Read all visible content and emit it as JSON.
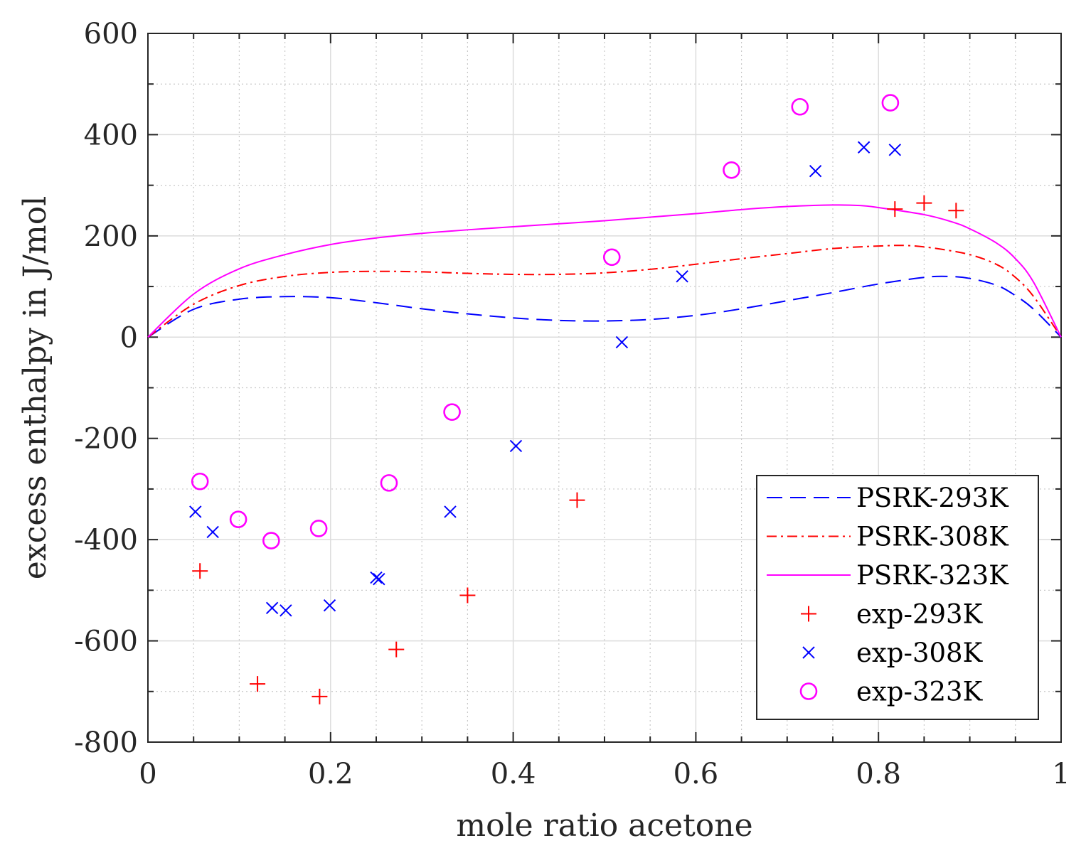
{
  "chart_data": {
    "type": "scatter",
    "xlabel": "mole ratio acetone",
    "ylabel": "excess enthalpy in J/mol",
    "xlim": [
      0,
      1
    ],
    "ylim": [
      -800,
      600
    ],
    "xticks": [
      0,
      0.2,
      0.4,
      0.6,
      0.8,
      1
    ],
    "xtick_labels": [
      "0",
      "0.2",
      "0.4",
      "0.6",
      "0.8",
      "1"
    ],
    "yticks": [
      -800,
      -600,
      -400,
      -200,
      0,
      200,
      400,
      600
    ],
    "ytick_labels": [
      "-800",
      "-600",
      "-400",
      "-200",
      "0",
      "200",
      "400",
      "600"
    ],
    "grid": true,
    "minor_grid": true,
    "legend_position": "bottom-right",
    "series": [
      {
        "name": "PSRK-293K",
        "kind": "line",
        "style": "dashed",
        "color": "#0000ff",
        "x": [
          0,
          0.05,
          0.1,
          0.15,
          0.2,
          0.25,
          0.3,
          0.35,
          0.4,
          0.45,
          0.5,
          0.55,
          0.6,
          0.65,
          0.7,
          0.75,
          0.8,
          0.85,
          0.875,
          0.9,
          0.93,
          0.95,
          0.97,
          1
        ],
        "y": [
          0,
          55,
          75,
          80,
          78,
          68,
          56,
          46,
          38,
          33,
          32,
          35,
          43,
          56,
          72,
          88,
          105,
          118,
          120,
          116,
          102,
          82,
          55,
          0
        ]
      },
      {
        "name": "PSRK-308K",
        "kind": "line",
        "style": "dashdot",
        "color": "#ff0000",
        "x": [
          0,
          0.05,
          0.1,
          0.15,
          0.2,
          0.25,
          0.3,
          0.35,
          0.4,
          0.45,
          0.5,
          0.55,
          0.6,
          0.65,
          0.7,
          0.75,
          0.8,
          0.83,
          0.86,
          0.9,
          0.93,
          0.95,
          0.97,
          1
        ],
        "y": [
          0,
          65,
          102,
          120,
          128,
          130,
          129,
          126,
          124,
          124,
          127,
          134,
          144,
          155,
          165,
          175,
          180,
          181,
          176,
          163,
          143,
          118,
          80,
          0
        ]
      },
      {
        "name": "PSRK-323K",
        "kind": "line",
        "style": "solid",
        "color": "#ff00ff",
        "x": [
          0,
          0.05,
          0.1,
          0.15,
          0.2,
          0.25,
          0.3,
          0.35,
          0.4,
          0.45,
          0.5,
          0.55,
          0.6,
          0.65,
          0.7,
          0.75,
          0.78,
          0.8,
          0.85,
          0.88,
          0.9,
          0.93,
          0.95,
          0.97,
          1
        ],
        "y": [
          0,
          85,
          135,
          163,
          183,
          196,
          205,
          212,
          218,
          224,
          230,
          237,
          244,
          252,
          258,
          261,
          260,
          256,
          242,
          228,
          214,
          185,
          155,
          108,
          0
        ]
      },
      {
        "name": "exp-293K",
        "kind": "marker",
        "marker": "plus",
        "color": "#ff0000",
        "x": [
          0.057,
          0.12,
          0.188,
          0.272,
          0.35,
          0.47,
          0.818,
          0.85,
          0.885
        ],
        "y": [
          -462,
          -685,
          -710,
          -617,
          -510,
          -322,
          253,
          265,
          250
        ]
      },
      {
        "name": "exp-308K",
        "kind": "marker",
        "marker": "x",
        "color": "#0000ff",
        "x": [
          0.052,
          0.071,
          0.136,
          0.151,
          0.199,
          0.25,
          0.253,
          0.331,
          0.403,
          0.519,
          0.585,
          0.731,
          0.784,
          0.818
        ],
        "y": [
          -345,
          -385,
          -535,
          -540,
          -530,
          -475,
          -478,
          -345,
          -215,
          -10,
          120,
          328,
          375,
          370
        ]
      },
      {
        "name": "exp-323K",
        "kind": "marker",
        "marker": "circle",
        "color": "#ff00ff",
        "x": [
          0.057,
          0.099,
          0.135,
          0.187,
          0.264,
          0.333,
          0.508,
          0.639,
          0.714,
          0.813
        ],
        "y": [
          -285,
          -360,
          -402,
          -378,
          -288,
          -148,
          158,
          330,
          455,
          463
        ]
      }
    ]
  }
}
